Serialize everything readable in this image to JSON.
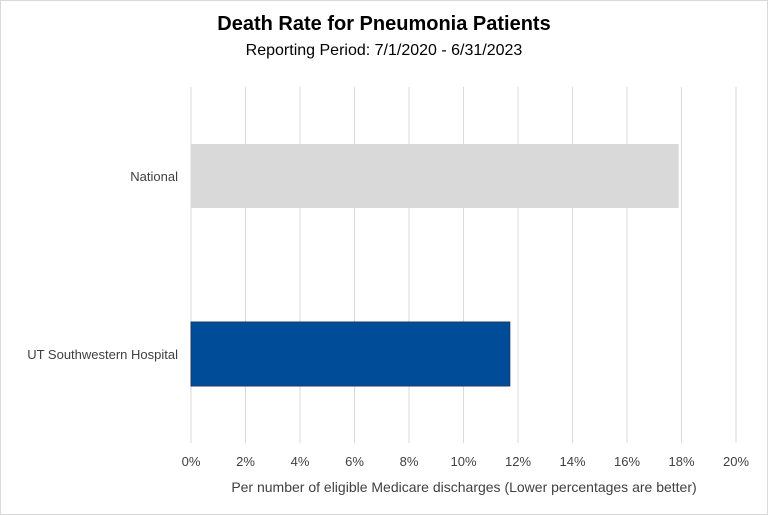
{
  "chart_data": {
    "type": "bar",
    "orientation": "horizontal",
    "title": "Death Rate for Pneumonia Patients",
    "subtitle": "Reporting Period: 7/1/2020 - 6/31/2023",
    "categories": [
      "National",
      "UT Southwestern Hospital"
    ],
    "values": [
      17.9,
      11.7
    ],
    "colors": [
      "#d9d9d9",
      "#004c99"
    ],
    "xlabel": "Per number of eligible Medicare discharges (Lower percentages are better)",
    "ylabel": "",
    "xlim": [
      0,
      20
    ],
    "ticks": [
      "0%",
      "2%",
      "4%",
      "6%",
      "8%",
      "10%",
      "12%",
      "14%",
      "16%",
      "18%",
      "20%"
    ],
    "grid": true,
    "legend": "none"
  }
}
